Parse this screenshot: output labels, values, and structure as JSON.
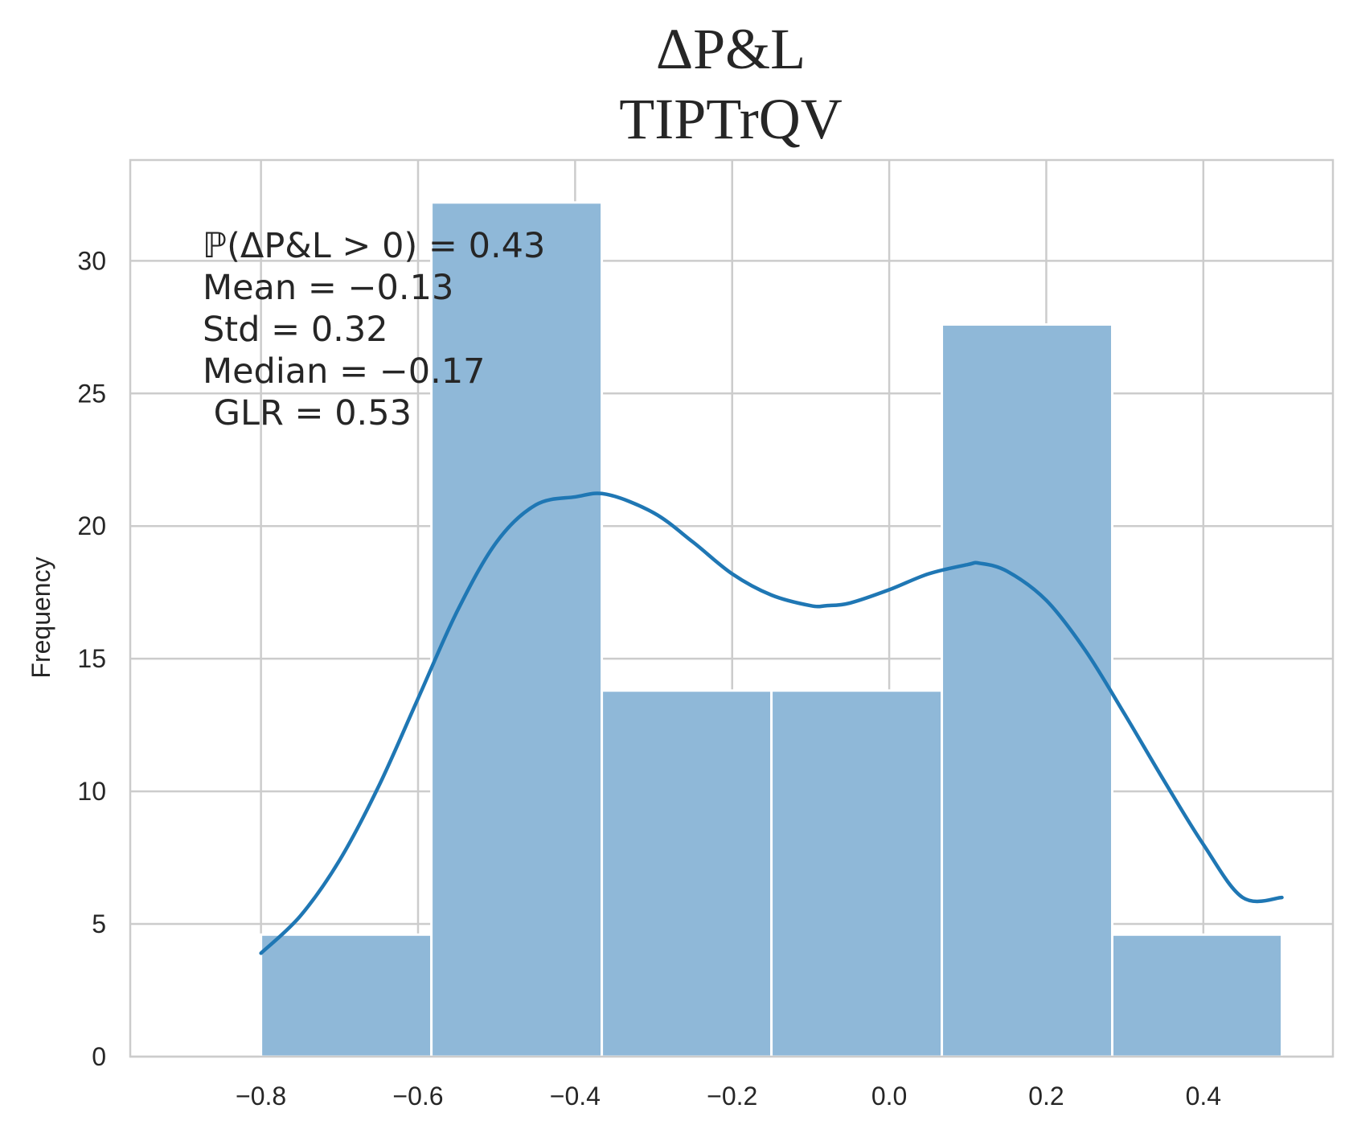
{
  "chart_data": {
    "type": "bar",
    "title_line1": "ΔP&L",
    "title_line2": "TIPTrQV",
    "xlabel": "",
    "ylabel": "Frequency",
    "xlim": [
      -0.9665,
      0.565
    ],
    "ylim": [
      0,
      33.8
    ],
    "x_ticks": [
      -0.8,
      -0.6,
      -0.4,
      -0.2,
      0.0,
      0.2,
      0.4
    ],
    "x_tick_labels": [
      "−0.8",
      "−0.6",
      "−0.4",
      "−0.2",
      "0.0",
      "0.2",
      "0.4"
    ],
    "y_ticks": [
      0,
      5,
      10,
      15,
      20,
      25,
      30
    ],
    "y_tick_labels": [
      "0",
      "5",
      "10",
      "15",
      "20",
      "25",
      "30"
    ],
    "grid": true,
    "bins": [
      {
        "x0": -0.8,
        "x1": -0.583,
        "value": 4.6
      },
      {
        "x0": -0.583,
        "x1": -0.366,
        "value": 32.2
      },
      {
        "x0": -0.366,
        "x1": -0.15,
        "value": 13.8
      },
      {
        "x0": -0.15,
        "x1": 0.067,
        "value": 13.8
      },
      {
        "x0": 0.067,
        "x1": 0.284,
        "value": 27.6
      },
      {
        "x0": 0.284,
        "x1": 0.5,
        "value": 4.6
      }
    ],
    "kde": {
      "x": [
        -0.8,
        -0.75,
        -0.7,
        -0.65,
        -0.6,
        -0.55,
        -0.5,
        -0.45,
        -0.4,
        -0.36,
        -0.3,
        -0.25,
        -0.2,
        -0.15,
        -0.1,
        -0.08,
        -0.05,
        0.0,
        0.05,
        0.1,
        0.115,
        0.15,
        0.2,
        0.25,
        0.3,
        0.35,
        0.4,
        0.45,
        0.5
      ],
      "y": [
        3.9,
        5.3,
        7.4,
        10.2,
        13.5,
        16.8,
        19.4,
        20.8,
        21.1,
        21.2,
        20.5,
        19.4,
        18.2,
        17.4,
        17.0,
        17.0,
        17.1,
        17.6,
        18.2,
        18.55,
        18.6,
        18.3,
        17.2,
        15.3,
        12.9,
        10.4,
        8.0,
        6.0,
        6.0
      ],
      "color": "#1f77b4"
    },
    "bar_color": "#8fb8d8",
    "grid_color": "#cccccc",
    "annotations": [
      "ℙ(ΔP&L > 0) = 0.43",
      "Mean = −0.13",
      "Std = 0.32",
      "Median = −0.17",
      " GLR = 0.53"
    ]
  }
}
